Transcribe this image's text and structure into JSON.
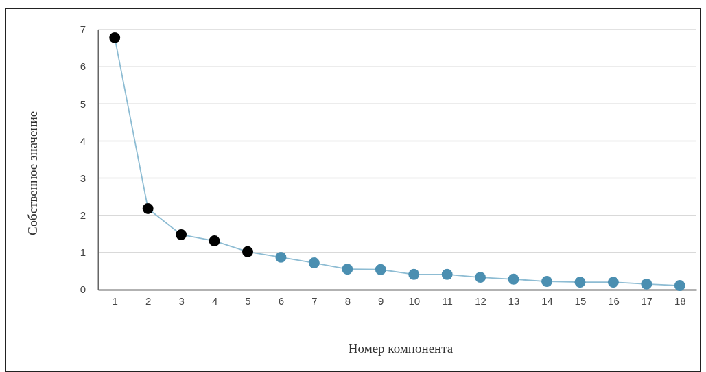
{
  "chart_data": {
    "type": "line",
    "xlabel": "Номер компонента",
    "ylabel": "Собственное значение",
    "categories": [
      "1",
      "2",
      "3",
      "4",
      "5",
      "6",
      "7",
      "8",
      "9",
      "10",
      "11",
      "12",
      "13",
      "14",
      "15",
      "16",
      "17",
      "18"
    ],
    "series": [
      {
        "color": "#8dbcd3",
        "colors": [
          "#000000",
          "#000000",
          "#000000",
          "#000000",
          "#000000",
          "#4b8fb1",
          "#4b8fb1",
          "#4b8fb1",
          "#4b8fb1",
          "#4b8fb1",
          "#4b8fb1",
          "#4b8fb1",
          "#4b8fb1",
          "#4b8fb1",
          "#4b8fb1",
          "#4b8fb1",
          "#4b8fb1",
          "#4b8fb1"
        ],
        "values": [
          6.78,
          2.18,
          1.48,
          1.31,
          1.02,
          0.87,
          0.72,
          0.55,
          0.54,
          0.41,
          0.41,
          0.33,
          0.28,
          0.22,
          0.2,
          0.2,
          0.15,
          0.11
        ]
      }
    ],
    "ylim": [
      0,
      7
    ],
    "yticks": [
      0,
      1,
      2,
      3,
      4,
      5,
      6,
      7
    ],
    "grid": "y",
    "marker": "circle",
    "line_style": "solid"
  }
}
